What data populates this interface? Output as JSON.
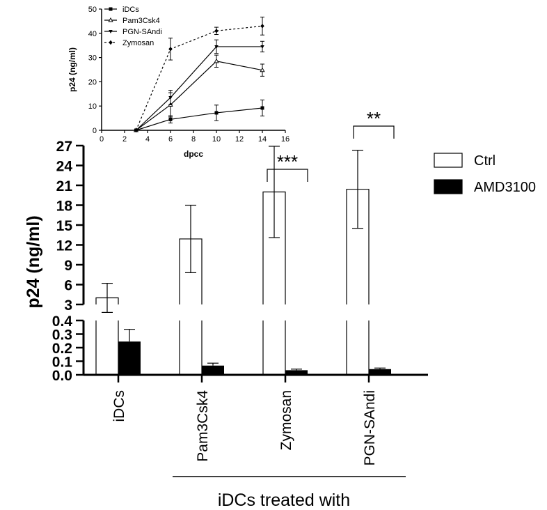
{
  "chart_data": [
    {
      "type": "line",
      "xlabel": "dpcc",
      "ylabel": "p24 (ng/ml)",
      "xlim": [
        0,
        16
      ],
      "ylim": [
        0,
        50
      ],
      "x_ticks": [
        "0",
        "2",
        "4",
        "6",
        "8",
        "10",
        "12",
        "14",
        "16"
      ],
      "y_ticks": [
        "0",
        "10",
        "20",
        "30",
        "40",
        "50"
      ],
      "legend_position": "top-left",
      "series": [
        {
          "name": "iDCs",
          "marker": "square",
          "line": "solid",
          "points": [
            {
              "x": 3,
              "y": 0,
              "err": 0
            },
            {
              "x": 6,
              "y": 4.5,
              "err": 1.5
            },
            {
              "x": 10,
              "y": 7.2,
              "err": 3.2
            },
            {
              "x": 14,
              "y": 9.2,
              "err": 3.3
            }
          ]
        },
        {
          "name": "Pam3Csk4",
          "marker": "triangle-up-open",
          "line": "solid",
          "points": [
            {
              "x": 3,
              "y": 0,
              "err": 0
            },
            {
              "x": 6,
              "y": 10.5,
              "err": 5
            },
            {
              "x": 10,
              "y": 28.5,
              "err": 2.5
            },
            {
              "x": 14,
              "y": 24.8,
              "err": 2.5
            }
          ]
        },
        {
          "name": "PGN-SAndi",
          "marker": "triangle-down",
          "line": "solid",
          "points": [
            {
              "x": 3,
              "y": 0,
              "err": 0
            },
            {
              "x": 6,
              "y": 13.5,
              "err": 3
            },
            {
              "x": 10,
              "y": 34.5,
              "err": 2.8
            },
            {
              "x": 14,
              "y": 34.5,
              "err": 2.2
            }
          ]
        },
        {
          "name": "Zymosan",
          "marker": "diamond",
          "line": "dashed",
          "points": [
            {
              "x": 3,
              "y": 0,
              "err": 0
            },
            {
              "x": 6,
              "y": 33.5,
              "err": 4.5
            },
            {
              "x": 10,
              "y": 41,
              "err": 1.5
            },
            {
              "x": 14,
              "y": 43,
              "err": 3.7
            }
          ]
        }
      ]
    },
    {
      "type": "bar",
      "ylabel": "p24 (ng/ml)",
      "group_label": "iDCs treated with",
      "categories": [
        "iDCs",
        "Pam3Csk4",
        "Zymosan",
        "PGN-SAndi"
      ],
      "axis_break": true,
      "upper_ylim": [
        3,
        27
      ],
      "upper_y_ticks": [
        "3",
        "6",
        "9",
        "12",
        "15",
        "18",
        "21",
        "24",
        "27"
      ],
      "lower_ylim": [
        0,
        0.4
      ],
      "lower_y_ticks": [
        "0.0",
        "0.1",
        "0.2",
        "0.3",
        "0.4"
      ],
      "legend_position": "right",
      "series": [
        {
          "name": "Ctrl",
          "fill": "#ffffff",
          "values": [
            4.0,
            12.9,
            20.0,
            20.4
          ],
          "errors": [
            2.2,
            5.1,
            6.9,
            5.9
          ]
        },
        {
          "name": "AMD3100",
          "fill": "#000000",
          "values": [
            0.245,
            0.068,
            0.034,
            0.042
          ],
          "errors": [
            0.09,
            0.018,
            0.008,
            0.008
          ]
        }
      ],
      "annotations": [
        {
          "category": "Zymosan",
          "text": "***"
        },
        {
          "category": "PGN-SAndi",
          "text": "**"
        }
      ]
    }
  ]
}
